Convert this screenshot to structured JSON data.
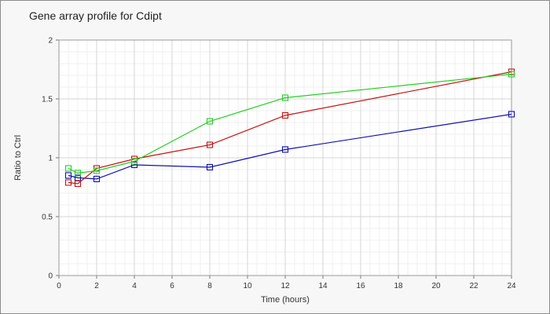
{
  "chart_data": {
    "type": "line",
    "title": "Gene array profile for Cdipt",
    "xlabel": "Time (hours)",
    "ylabel": "Ratio to Ctrl",
    "xlim": [
      0,
      24
    ],
    "ylim": [
      0,
      2
    ],
    "x_ticks": [
      "0",
      "2",
      "4",
      "6",
      "8",
      "10",
      "12",
      "14",
      "16",
      "18",
      "20",
      "22",
      "24"
    ],
    "y_ticks": [
      "0",
      "0.5",
      "1",
      "1.5",
      "2"
    ],
    "grid": true,
    "marker": "square",
    "series": [
      {
        "color": "#1010b0",
        "x": [
          0.5,
          1,
          2,
          4,
          8,
          12,
          24
        ],
        "y": [
          0.85,
          0.83,
          0.82,
          0.94,
          0.92,
          1.07,
          1.37
        ]
      },
      {
        "color": "#c81010",
        "x": [
          0.5,
          1,
          2,
          4,
          8,
          12,
          24
        ],
        "y": [
          0.79,
          0.78,
          0.91,
          0.99,
          1.11,
          1.36,
          1.73
        ]
      },
      {
        "color": "#20d020",
        "x": [
          0.5,
          1,
          2,
          4,
          8,
          12,
          24
        ],
        "y": [
          0.91,
          0.87,
          0.89,
          0.97,
          1.31,
          1.51,
          1.71
        ]
      }
    ]
  }
}
